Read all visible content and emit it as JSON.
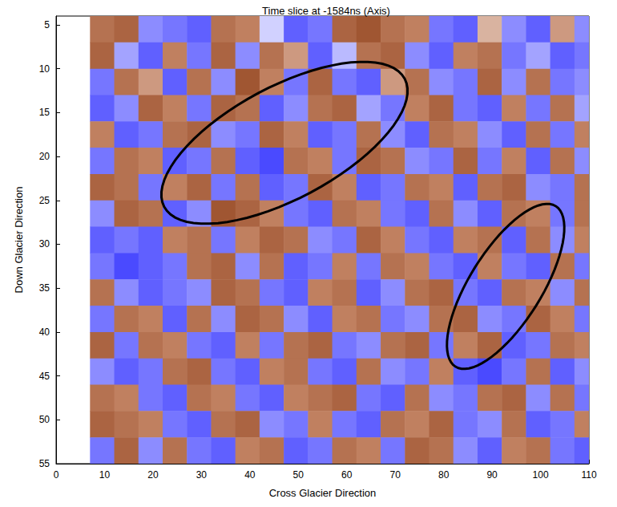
{
  "chart_data": {
    "type": "heatmap",
    "title": "Time slice at -1584ns (Axis)",
    "x_label": "Cross Glacier Direction",
    "y_label": "Down Glacier Direction",
    "xlim": [
      0,
      110
    ],
    "xticks": [
      0,
      10,
      20,
      30,
      40,
      50,
      60,
      70,
      80,
      90,
      100,
      110
    ],
    "ylim": [
      4,
      55
    ],
    "yticks": [
      5,
      10,
      15,
      20,
      25,
      30,
      35,
      40,
      45,
      50,
      55
    ],
    "color_range": [
      -1,
      1
    ],
    "x": [
      9.5,
      14.5,
      19.5,
      24.5,
      29.5,
      34.5,
      39.5,
      44.5,
      49.5,
      54.5,
      59.5,
      64.5,
      69.5,
      74.5,
      79.5,
      84.5,
      89.5,
      94.5,
      99.5,
      104.5,
      109.5
    ],
    "y": [
      5.5,
      8.5,
      11.5,
      14.5,
      17.5,
      20.5,
      23.5,
      26.5,
      29.5,
      32.5,
      35.5,
      38.5,
      41.5,
      44.5,
      47.5,
      50.5,
      53.5
    ],
    "cells": [
      [
        0.6,
        0.7,
        -0.5,
        -0.6,
        -0.7,
        0.6,
        0.5,
        -0.2,
        -0.7,
        -0.6,
        0.7,
        0.8,
        0.6,
        0.5,
        -0.6,
        -0.7,
        0.3,
        -0.5,
        -0.7,
        0.4,
        -0.5
      ],
      [
        0.7,
        -0.4,
        -0.7,
        0.5,
        -0.6,
        0.7,
        -0.5,
        0.6,
        0.4,
        -0.7,
        -0.3,
        0.6,
        0.7,
        -0.5,
        -0.7,
        0.5,
        0.6,
        -0.6,
        -0.4,
        -0.7,
        -0.6
      ],
      [
        -0.6,
        0.6,
        0.4,
        -0.7,
        0.6,
        -0.5,
        0.8,
        0.5,
        -0.6,
        0.7,
        -0.6,
        -0.7,
        0.4,
        0.6,
        -0.5,
        -0.6,
        0.7,
        -0.5,
        0.6,
        -0.6,
        -0.5
      ],
      [
        -0.7,
        -0.5,
        0.7,
        0.5,
        -0.6,
        0.7,
        0.6,
        -0.7,
        -0.5,
        0.6,
        0.7,
        -0.4,
        -0.6,
        0.5,
        0.7,
        -0.6,
        -0.7,
        0.5,
        -0.6,
        0.6,
        -0.4
      ],
      [
        0.5,
        -0.7,
        -0.6,
        0.6,
        0.7,
        -0.5,
        -0.6,
        0.7,
        0.5,
        -0.7,
        -0.6,
        0.6,
        -0.5,
        -0.7,
        0.6,
        0.5,
        -0.5,
        -0.7,
        0.6,
        -0.6,
        0.5
      ],
      [
        -0.6,
        0.6,
        0.5,
        -0.7,
        -0.6,
        0.6,
        -0.7,
        -0.8,
        0.6,
        0.5,
        -0.6,
        0.7,
        0.6,
        -0.5,
        -0.6,
        0.7,
        -0.6,
        0.5,
        -0.7,
        0.6,
        -0.5
      ],
      [
        0.7,
        0.6,
        -0.6,
        0.5,
        0.7,
        -0.6,
        0.6,
        -0.7,
        -0.6,
        0.7,
        0.5,
        -0.7,
        -0.6,
        0.6,
        0.5,
        -0.7,
        0.6,
        0.7,
        -0.5,
        -0.6,
        0.6
      ],
      [
        -0.5,
        0.7,
        0.6,
        -0.7,
        -0.5,
        0.8,
        0.7,
        0.5,
        -0.6,
        -0.7,
        0.6,
        0.5,
        -0.6,
        -0.7,
        0.6,
        -0.5,
        -0.7,
        0.6,
        0.5,
        -0.6,
        0.6
      ],
      [
        -0.7,
        -0.6,
        -0.7,
        0.5,
        0.6,
        -0.6,
        0.5,
        0.7,
        0.6,
        -0.5,
        -0.6,
        0.7,
        0.5,
        -0.6,
        -0.7,
        0.5,
        0.6,
        -0.7,
        0.6,
        -0.5,
        0.5
      ],
      [
        -0.6,
        -0.8,
        -0.7,
        -0.6,
        0.6,
        0.7,
        -0.5,
        0.6,
        -0.7,
        -0.6,
        0.5,
        -0.6,
        0.6,
        0.5,
        -0.6,
        -0.7,
        0.5,
        -0.6,
        -0.7,
        0.6,
        -0.6
      ],
      [
        0.6,
        -0.5,
        -0.7,
        -0.6,
        -0.5,
        0.7,
        0.6,
        -0.6,
        -0.7,
        0.5,
        0.6,
        -0.7,
        -0.5,
        0.6,
        0.7,
        -0.6,
        -0.7,
        0.6,
        0.5,
        -0.5,
        0.6
      ],
      [
        -0.6,
        0.6,
        0.5,
        -0.7,
        0.6,
        -0.5,
        0.7,
        0.6,
        -0.5,
        -0.7,
        0.5,
        0.6,
        -0.6,
        -0.5,
        0.6,
        0.7,
        -0.5,
        -0.6,
        0.7,
        0.5,
        -0.6
      ],
      [
        0.7,
        -0.6,
        0.6,
        0.5,
        -0.6,
        -0.7,
        0.5,
        -0.6,
        0.6,
        0.7,
        -0.6,
        -0.5,
        0.6,
        0.7,
        -0.6,
        0.5,
        0.7,
        -0.7,
        -0.6,
        0.6,
        0.5
      ],
      [
        -0.5,
        -0.7,
        -0.6,
        0.6,
        0.7,
        -0.6,
        -0.7,
        0.5,
        0.6,
        -0.6,
        -0.7,
        0.6,
        -0.5,
        -0.6,
        0.5,
        -0.7,
        -0.8,
        -0.6,
        0.6,
        -0.7,
        -0.5
      ],
      [
        0.6,
        0.5,
        -0.6,
        -0.7,
        0.6,
        0.5,
        -0.6,
        -0.7,
        0.5,
        0.6,
        0.7,
        -0.6,
        -0.7,
        0.6,
        -0.5,
        -0.6,
        0.6,
        0.7,
        -0.5,
        0.6,
        -0.6
      ],
      [
        0.7,
        0.6,
        0.5,
        -0.6,
        -0.7,
        0.6,
        0.7,
        -0.5,
        -0.6,
        0.5,
        -0.6,
        -0.7,
        0.6,
        0.5,
        0.7,
        -0.6,
        -0.5,
        0.6,
        -0.7,
        -0.6,
        0.5
      ],
      [
        -0.6,
        0.7,
        -0.5,
        0.6,
        -0.6,
        -0.7,
        0.5,
        0.6,
        -0.7,
        -0.6,
        0.6,
        0.5,
        -0.6,
        0.7,
        0.6,
        -0.5,
        -0.7,
        0.5,
        0.6,
        -0.6,
        -0.7
      ]
    ]
  }
}
